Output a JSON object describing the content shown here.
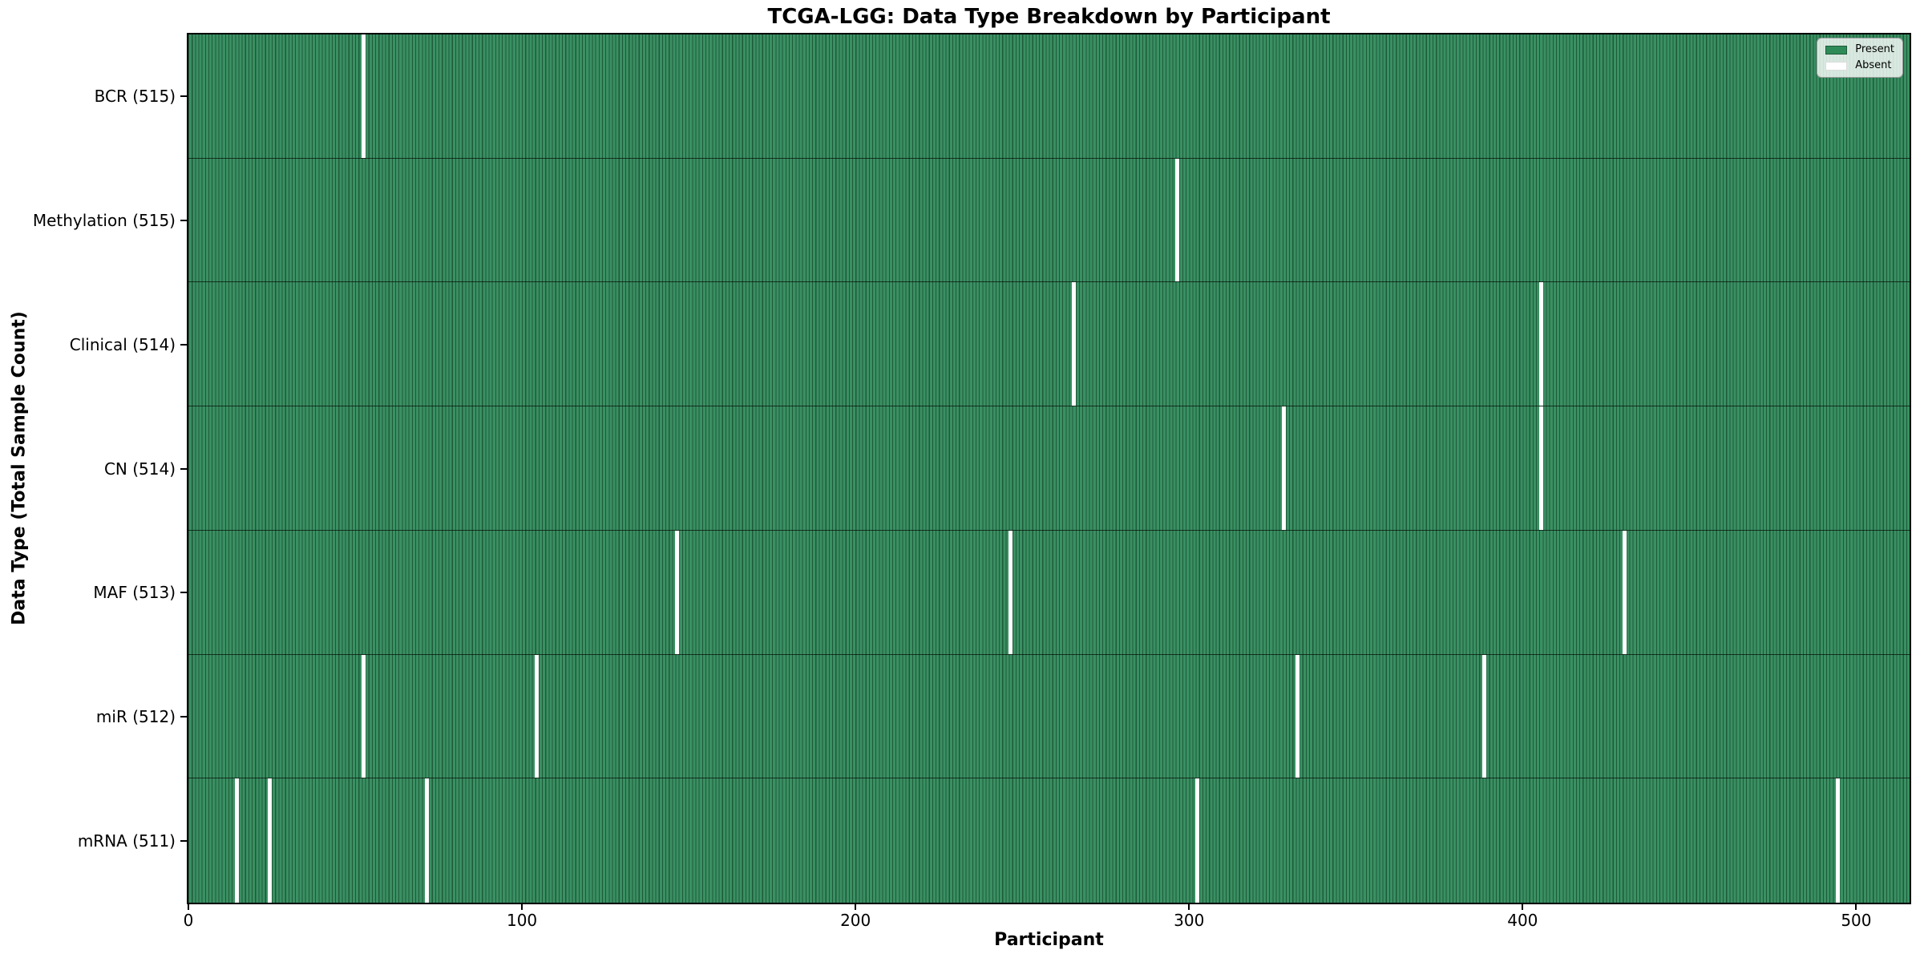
{
  "chart_data": {
    "type": "heatmap",
    "title": "TCGA-LGG: Data Type Breakdown by Participant",
    "xlabel": "Participant",
    "ylabel": "Data Type (Total Sample Count)",
    "x_ticks": [
      0,
      100,
      200,
      300,
      400,
      500
    ],
    "xlim": [
      0,
      516
    ],
    "n_participants": 516,
    "grid": false,
    "legend": {
      "position": "upper right",
      "entries": [
        {
          "label": "Present",
          "color": "#2e8b57"
        },
        {
          "label": "Absent",
          "color": "#ffffff"
        }
      ]
    },
    "rows": [
      {
        "label": "BCR (515)",
        "data_type": "BCR",
        "present_count": 515,
        "absent_count": 1,
        "absent_indices": [
          52
        ]
      },
      {
        "label": "Methylation (515)",
        "data_type": "Methylation",
        "present_count": 515,
        "absent_count": 1,
        "absent_indices": [
          296
        ]
      },
      {
        "label": "Clinical (514)",
        "data_type": "Clinical",
        "present_count": 514,
        "absent_count": 2,
        "absent_indices": [
          265,
          405
        ]
      },
      {
        "label": "CN (514)",
        "data_type": "CN",
        "present_count": 514,
        "absent_count": 2,
        "absent_indices": [
          328,
          405
        ]
      },
      {
        "label": "MAF (513)",
        "data_type": "MAF",
        "present_count": 513,
        "absent_count": 3,
        "absent_indices": [
          146,
          246,
          430
        ]
      },
      {
        "label": "miR (512)",
        "data_type": "miR",
        "present_count": 512,
        "absent_count": 4,
        "absent_indices": [
          52,
          104,
          332,
          388
        ]
      },
      {
        "label": "mRNA (511)",
        "data_type": "mRNA",
        "present_count": 511,
        "absent_count": 5,
        "absent_indices": [
          14,
          24,
          71,
          302,
          494
        ]
      }
    ],
    "colors": {
      "present_fill": "#3a9063",
      "bar_edge": "#1e5a38",
      "absent_fill": "#ffffff",
      "row_separator": "rgba(0,0,0,0.65)",
      "axis": "#000000"
    }
  }
}
